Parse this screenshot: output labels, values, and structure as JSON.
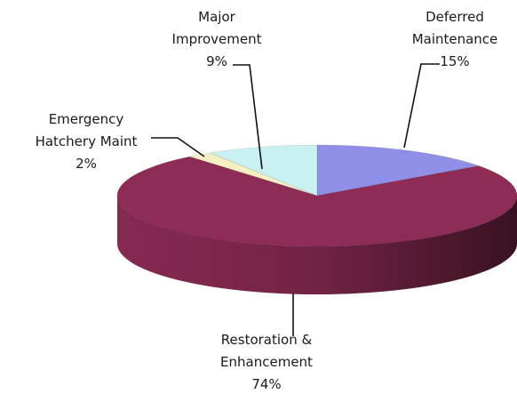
{
  "chart_data": {
    "type": "pie",
    "categories": [
      "Deferred Maintenance",
      "Restoration & Enhancement",
      "Emergency Hatchery Maint",
      "Major Improvement"
    ],
    "values": [
      15,
      74,
      2,
      9
    ],
    "value_labels": [
      "15%",
      "74%",
      "2%",
      "9%"
    ],
    "colors": [
      "#8f8fe8",
      "#8e2c55",
      "#f4f0c4",
      "#c9f1f1"
    ]
  }
}
